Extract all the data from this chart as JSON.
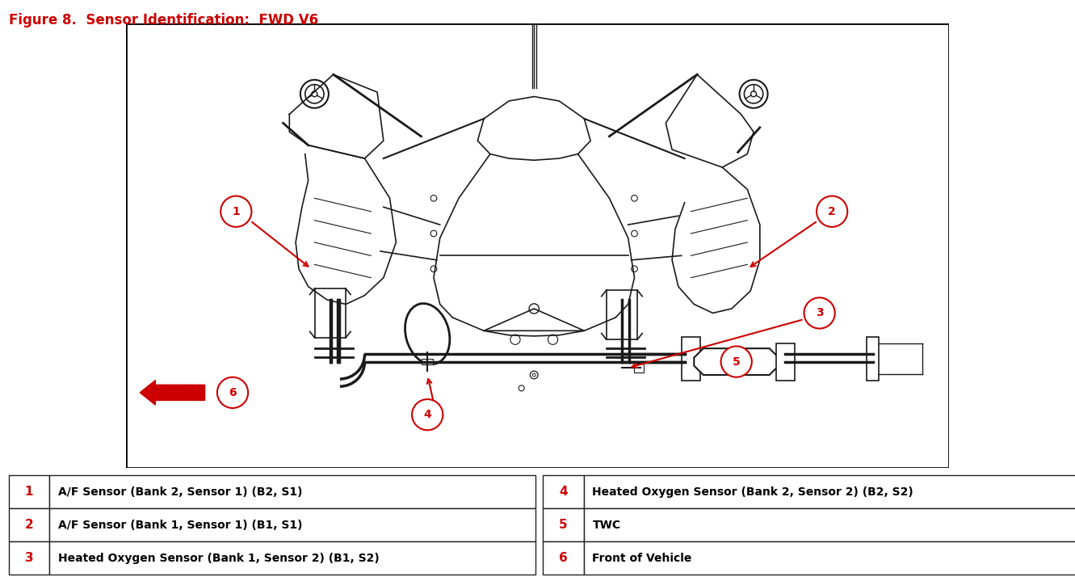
{
  "title": "Figure 8.  Sensor Identification:  FWD V6",
  "title_color": "#CC0000",
  "title_fontsize": 12,
  "bg_color": "#FFFFFF",
  "table_items_left": [
    {
      "num": "1",
      "text": "A/F Sensor (Bank 2, Sensor 1) (B2, S1)"
    },
    {
      "num": "2",
      "text": "A/F Sensor (Bank 1, Sensor 1) (B1, S1)"
    },
    {
      "num": "3",
      "text": "Heated Oxygen Sensor (Bank 1, Sensor 2) (B1, S2)"
    }
  ],
  "table_items_right": [
    {
      "num": "4",
      "text": "Heated Oxygen Sensor (Bank 2, Sensor 2) (B2, S2)"
    },
    {
      "num": "5",
      "text": "TWC"
    },
    {
      "num": "6",
      "text": "Front of Vehicle"
    }
  ],
  "num_color": "#CC0000",
  "text_color": "#000000",
  "label_fontsize": 10,
  "num_fontsize": 11,
  "engine_color": "#1a1a1a",
  "pipe_color": "#1a1a1a",
  "red": "#CC0000"
}
